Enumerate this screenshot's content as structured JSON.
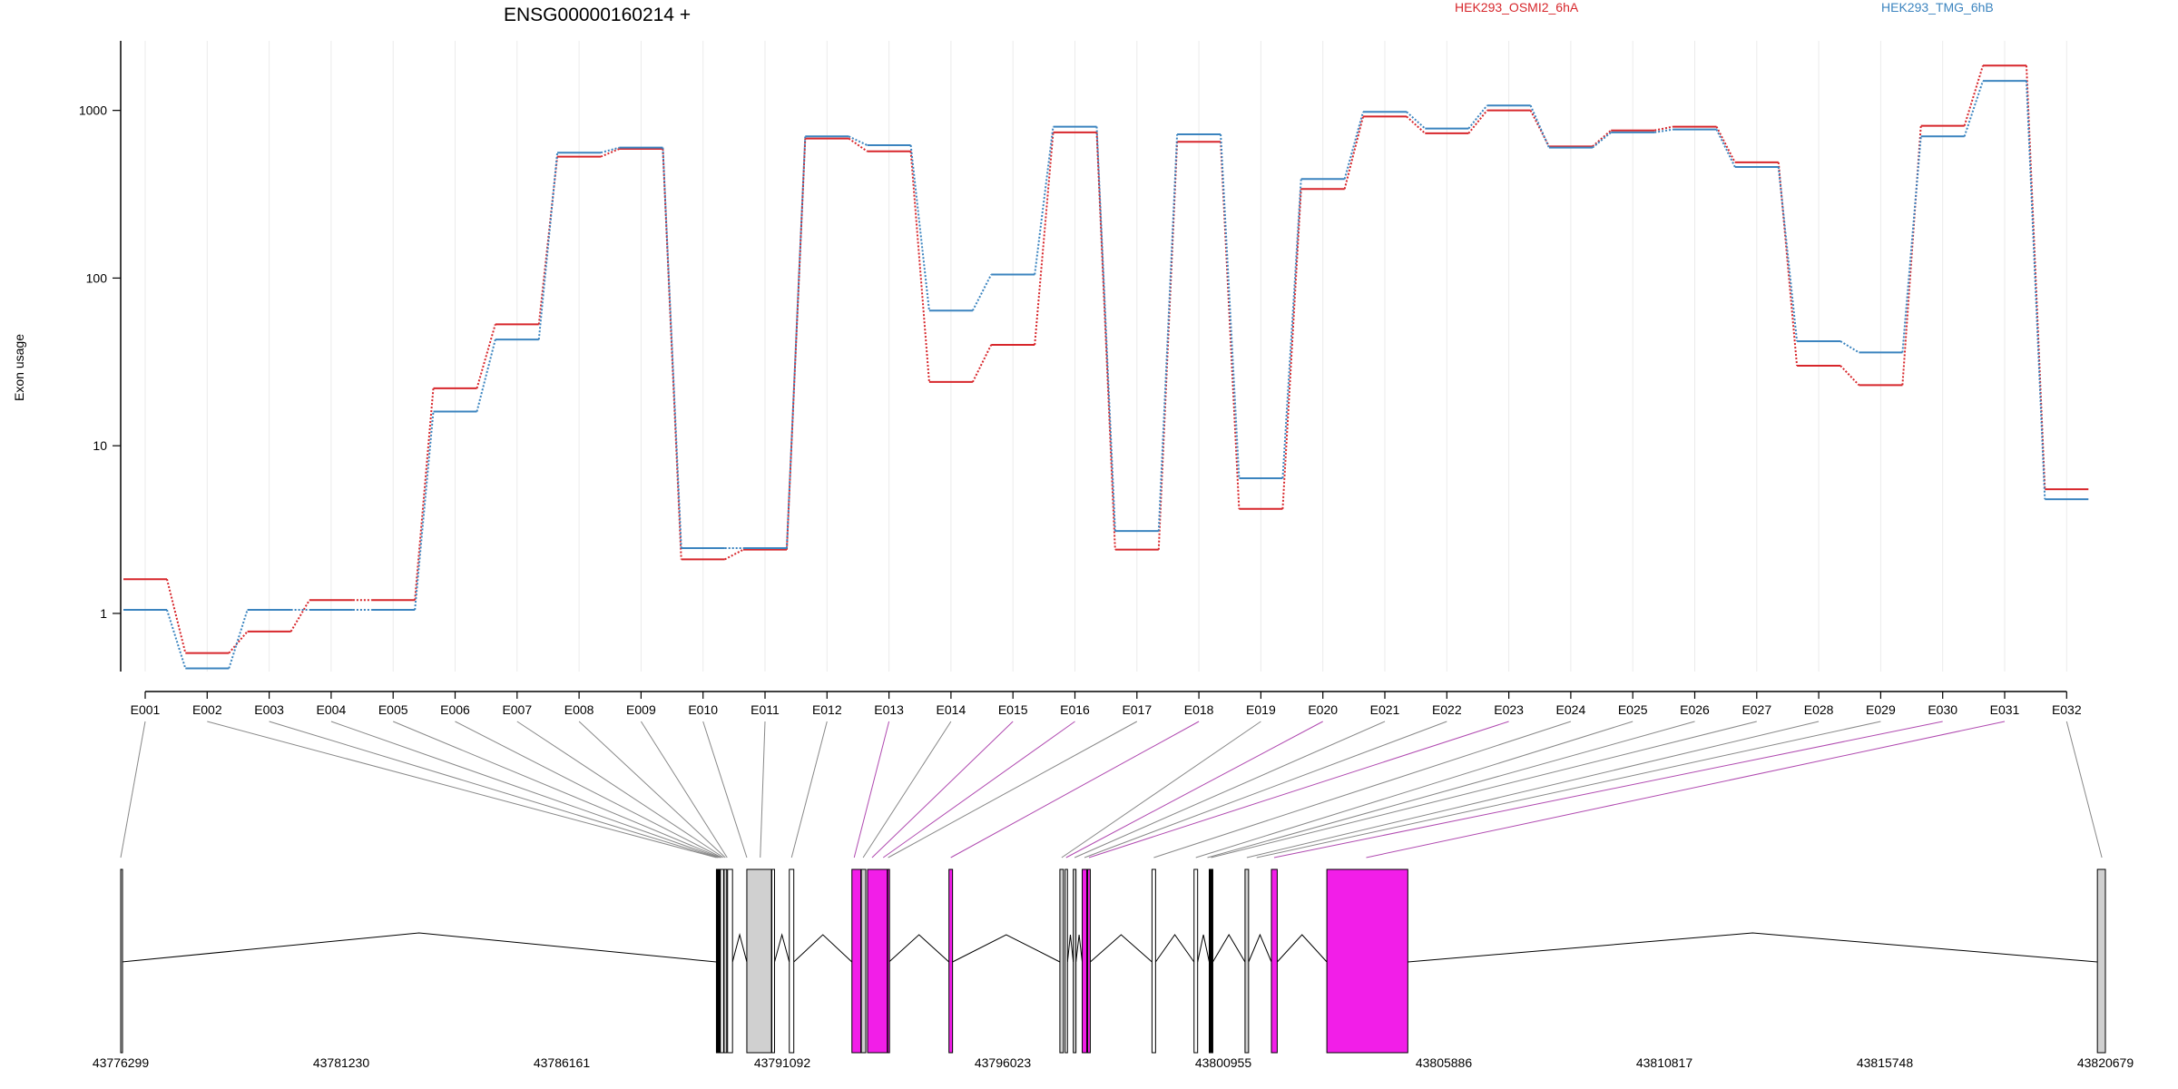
{
  "chart_data": {
    "type": "line",
    "title": "ENSG00000160214 +",
    "ylabel": "Exon usage",
    "y_scale": "log",
    "ylim": [
      0.45,
      2600
    ],
    "y_ticks": [
      {
        "value": 1,
        "label": "1"
      },
      {
        "value": 10,
        "label": "10"
      },
      {
        "value": 100,
        "label": "100"
      },
      {
        "value": 1000,
        "label": "1000"
      }
    ],
    "categories": [
      "E001",
      "E002",
      "E003",
      "E004",
      "E005",
      "E006",
      "E007",
      "E008",
      "E009",
      "E010",
      "E011",
      "E012",
      "E013",
      "E014",
      "E015",
      "E016",
      "E017",
      "E018",
      "E019",
      "E020",
      "E021",
      "E022",
      "E023",
      "E024",
      "E025",
      "E026",
      "E027",
      "E028",
      "E029",
      "E030",
      "E031",
      "E032"
    ],
    "legend_placement": "top",
    "series": [
      {
        "name": "HEK293_OSMI2_6hA",
        "color": "#d7262b",
        "values": [
          1.6,
          0.58,
          0.78,
          1.2,
          1.2,
          22,
          53,
          530,
          590,
          2.1,
          2.4,
          680,
          570,
          24,
          40,
          740,
          2.4,
          650,
          4.2,
          340,
          920,
          730,
          1000,
          610,
          760,
          800,
          490,
          30,
          23,
          810,
          1850,
          5.5
        ]
      },
      {
        "name": "HEK293_TMG_6hB",
        "color": "#3b84bf",
        "values": [
          1.05,
          0.47,
          1.05,
          1.05,
          1.05,
          16,
          43,
          560,
          600,
          2.45,
          2.45,
          700,
          620,
          64,
          105,
          800,
          3.1,
          720,
          6.4,
          390,
          980,
          780,
          1070,
          600,
          740,
          770,
          460,
          42,
          36,
          700,
          1500,
          4.8
        ]
      }
    ],
    "gene_model": {
      "coordinate_ticks": [
        "43776299",
        "43781230",
        "43786161",
        "43791092",
        "43796023",
        "43800955",
        "43805886",
        "43810817",
        "43815748",
        "43820679"
      ],
      "coord_start": 43776299,
      "coord_end": 43820679,
      "exons": [
        {
          "start": 43776299,
          "end": 43776320,
          "fill": "#d0d0d0"
        },
        {
          "start": 43789620,
          "end": 43789700,
          "fill": "#000000"
        },
        {
          "start": 43789710,
          "end": 43789780,
          "fill": "#ffffff"
        },
        {
          "start": 43789790,
          "end": 43789850,
          "fill": "#d0d0d0"
        },
        {
          "start": 43789870,
          "end": 43789980,
          "fill": "#ffffff"
        },
        {
          "start": 43790300,
          "end": 43790850,
          "fill": "#d0d0d0"
        },
        {
          "start": 43790860,
          "end": 43790920,
          "fill": "#ffffff"
        },
        {
          "start": 43791250,
          "end": 43791350,
          "fill": "#ffffff"
        },
        {
          "start": 43792650,
          "end": 43792850,
          "fill": "#f21ee8"
        },
        {
          "start": 43792860,
          "end": 43792960,
          "fill": "#d0d0d0"
        },
        {
          "start": 43793000,
          "end": 43793440,
          "fill": "#f21ee8"
        },
        {
          "start": 43793450,
          "end": 43793480,
          "fill": "#f21ee8"
        },
        {
          "start": 43794820,
          "end": 43794900,
          "fill": "#f21ee8"
        },
        {
          "start": 43797300,
          "end": 43797380,
          "fill": "#d0d0d0"
        },
        {
          "start": 43797420,
          "end": 43797470,
          "fill": "#ffffff"
        },
        {
          "start": 43797600,
          "end": 43797660,
          "fill": "#d0d0d0"
        },
        {
          "start": 43797800,
          "end": 43797900,
          "fill": "#f21ee8"
        },
        {
          "start": 43797920,
          "end": 43797980,
          "fill": "#f21ee8"
        },
        {
          "start": 43799360,
          "end": 43799440,
          "fill": "#ffffff"
        },
        {
          "start": 43800300,
          "end": 43800380,
          "fill": "#ffffff"
        },
        {
          "start": 43800640,
          "end": 43800720,
          "fill": "#000000"
        },
        {
          "start": 43801440,
          "end": 43801520,
          "fill": "#d0d0d0"
        },
        {
          "start": 43802030,
          "end": 43802160,
          "fill": "#f21ee8"
        },
        {
          "start": 43803270,
          "end": 43805080,
          "fill": "#f21ee8"
        },
        {
          "start": 43820500,
          "end": 43820679,
          "fill": "#d0d0d0"
        }
      ],
      "exon_links": [
        {
          "exon": "E001",
          "coord": 43776299,
          "color": "#888888"
        },
        {
          "exon": "E002",
          "coord": 43789620,
          "color": "#888888"
        },
        {
          "exon": "E003",
          "coord": 43789650,
          "color": "#888888"
        },
        {
          "exon": "E004",
          "coord": 43789680,
          "color": "#888888"
        },
        {
          "exon": "E005",
          "coord": 43789710,
          "color": "#888888"
        },
        {
          "exon": "E006",
          "coord": 43789740,
          "color": "#888888"
        },
        {
          "exon": "E007",
          "coord": 43789780,
          "color": "#888888"
        },
        {
          "exon": "E008",
          "coord": 43789820,
          "color": "#888888"
        },
        {
          "exon": "E009",
          "coord": 43789860,
          "color": "#888888"
        },
        {
          "exon": "E010",
          "coord": 43790300,
          "color": "#888888"
        },
        {
          "exon": "E011",
          "coord": 43790600,
          "color": "#888888"
        },
        {
          "exon": "E012",
          "coord": 43791300,
          "color": "#888888"
        },
        {
          "exon": "E013",
          "coord": 43792700,
          "color": "#b04ab0"
        },
        {
          "exon": "E014",
          "coord": 43792900,
          "color": "#888888"
        },
        {
          "exon": "E015",
          "coord": 43793100,
          "color": "#b04ab0"
        },
        {
          "exon": "E016",
          "coord": 43793350,
          "color": "#b04ab0"
        },
        {
          "exon": "E017",
          "coord": 43793460,
          "color": "#888888"
        },
        {
          "exon": "E018",
          "coord": 43794860,
          "color": "#b04ab0"
        },
        {
          "exon": "E019",
          "coord": 43797340,
          "color": "#888888"
        },
        {
          "exon": "E020",
          "coord": 43797440,
          "color": "#b04ab0"
        },
        {
          "exon": "E021",
          "coord": 43797630,
          "color": "#888888"
        },
        {
          "exon": "E022",
          "coord": 43797850,
          "color": "#888888"
        },
        {
          "exon": "E023",
          "coord": 43797950,
          "color": "#b04ab0"
        },
        {
          "exon": "E024",
          "coord": 43799400,
          "color": "#888888"
        },
        {
          "exon": "E025",
          "coord": 43800340,
          "color": "#888888"
        },
        {
          "exon": "E026",
          "coord": 43800600,
          "color": "#888888"
        },
        {
          "exon": "E027",
          "coord": 43800680,
          "color": "#888888"
        },
        {
          "exon": "E028",
          "coord": 43801480,
          "color": "#888888"
        },
        {
          "exon": "E029",
          "coord": 43801700,
          "color": "#888888"
        },
        {
          "exon": "E030",
          "coord": 43802090,
          "color": "#b04ab0"
        },
        {
          "exon": "E031",
          "coord": 43804150,
          "color": "#b04ab0"
        },
        {
          "exon": "E032",
          "coord": 43820600,
          "color": "#888888"
        }
      ]
    }
  }
}
